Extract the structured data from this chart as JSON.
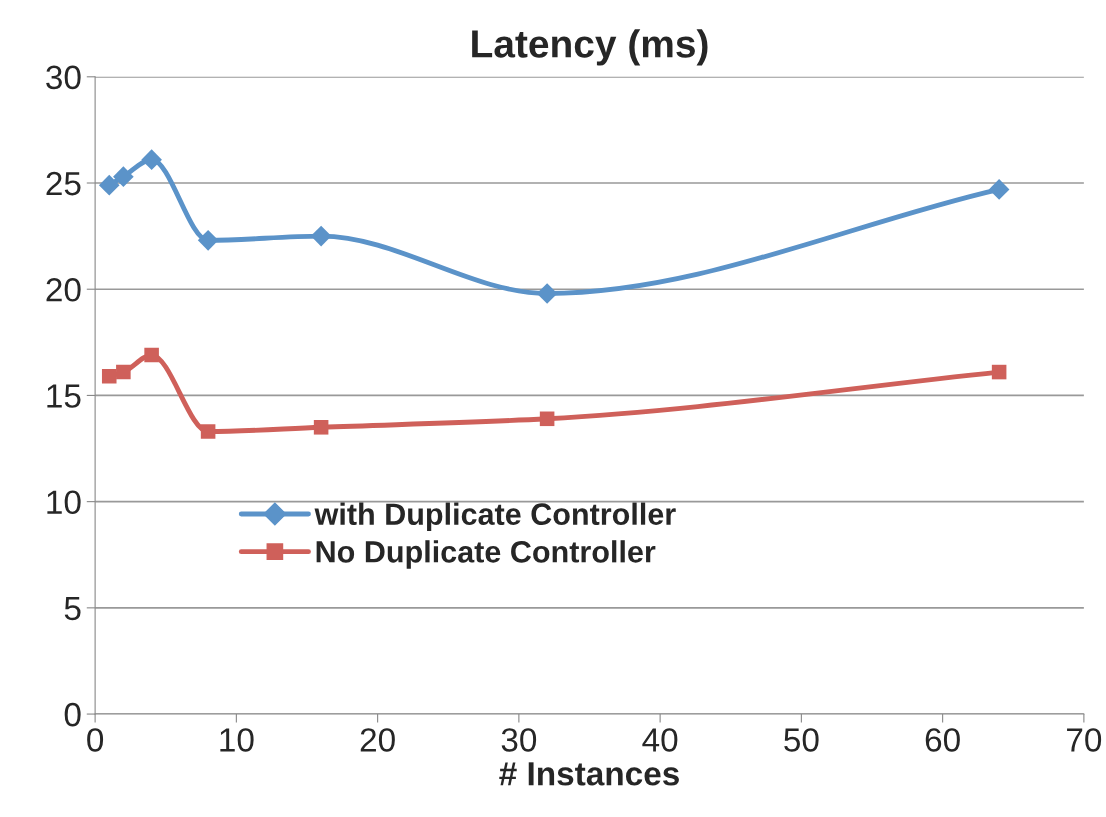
{
  "chart_data": {
    "type": "line",
    "title": "Latency (ms)",
    "xlabel": "# Instances",
    "xlim": [
      0,
      70
    ],
    "xticks": [
      0,
      10,
      20,
      30,
      40,
      50,
      60,
      70
    ],
    "ylim": [
      0,
      30
    ],
    "yticks": [
      0,
      5,
      10,
      15,
      20,
      25,
      30
    ],
    "grid": "y",
    "legend": "left",
    "line_style": "solid",
    "series": [
      {
        "name": "with Duplicate Controller",
        "color": "#5b93c9",
        "marker": "diamond",
        "x": [
          1,
          2,
          4,
          8,
          16,
          32,
          64
        ],
        "values": [
          24.9,
          25.3,
          26.1,
          22.3,
          22.5,
          19.8,
          24.7
        ]
      },
      {
        "name": "No Duplicate Controller",
        "color": "#cf605a",
        "marker": "square",
        "x": [
          1,
          2,
          4,
          8,
          16,
          32,
          64
        ],
        "values": [
          15.9,
          16.1,
          16.9,
          13.3,
          13.5,
          13.9,
          16.1
        ]
      }
    ]
  }
}
